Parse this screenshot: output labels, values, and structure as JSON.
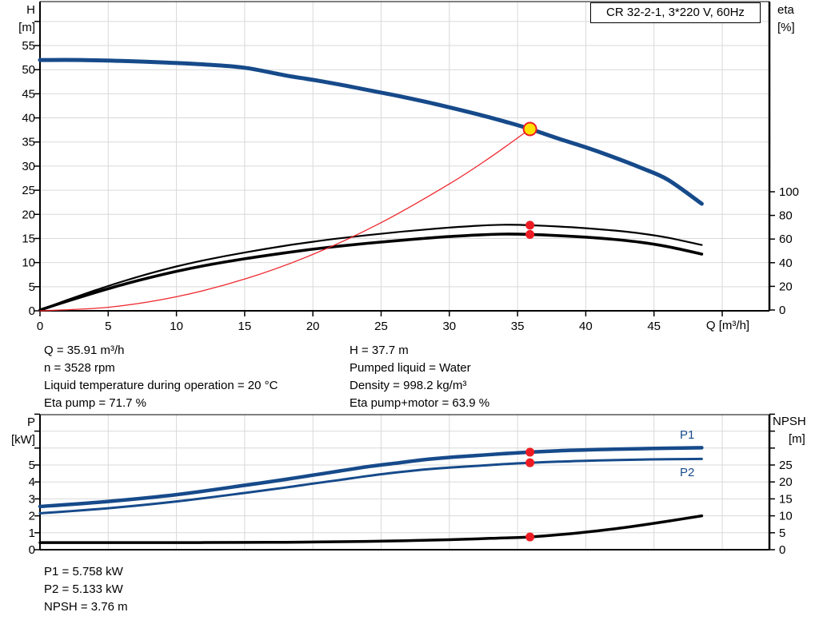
{
  "title_box": "CR 32-2-1, 3*220 V, 60Hz",
  "axes_labels": {
    "top_left_1": "H",
    "top_left_2": "[m]",
    "top_right_1": "eta",
    "top_right_2": "[%]",
    "x": "Q [m³/h]",
    "bottom_left_1": "P",
    "bottom_left_2": "[kW]",
    "bottom_right_1": "NPSH",
    "bottom_right_2": "[m]"
  },
  "info_top_left": {
    "line1": "Q = 35.91 m³/h",
    "line2": "n = 3528 rpm",
    "line3": "Liquid temperature during operation = 20 °C",
    "line4": "Eta pump = 71.7 %"
  },
  "info_top_right": {
    "line1": "H = 37.7 m",
    "line2": "Pumped liquid = Water",
    "line3": "Density = 998.2 kg/m³",
    "line4": "Eta pump+motor = 63.9 %"
  },
  "info_bottom": {
    "line1": "P1 = 5.758 kW",
    "line2": "P2 = 5.133 kW",
    "line3": "NPSH = 3.76 m"
  },
  "operating_point": {
    "Q": 35.91,
    "H": 37.7,
    "eta_pump": 71.7,
    "eta_pump_motor": 63.9,
    "P1": 5.758,
    "P2": 5.133,
    "NPSH": 3.76
  },
  "colors": {
    "curve_blue": "#164A8A",
    "curve_black": "#000000",
    "curve_red": "#ED1C24",
    "marker_red": "#ED1C24",
    "marker_yellow_fill": "#FFE000",
    "grid": "#D9D9D9",
    "axis": "#000000"
  },
  "chart_data": [
    {
      "type": "line",
      "title": "CR 32-2-1, 3*220 V, 60Hz",
      "xlabel": "Q [m³/h]",
      "ylabel_left": "H [m]",
      "ylabel_right": "eta [%]",
      "xlim": [
        0,
        53.4
      ],
      "ylim_left": [
        0,
        64
      ],
      "x_tick_labels": [
        0,
        5,
        10,
        15,
        20,
        25,
        30,
        35,
        40,
        45
      ],
      "x_tick_max": 50,
      "y_left_tick_labels": [
        0,
        5,
        10,
        15,
        20,
        25,
        30,
        35,
        40,
        45,
        50,
        55
      ],
      "y_left_tick_max": 60,
      "y_right_tick_labels": [
        0,
        20,
        40,
        60,
        80,
        100
      ],
      "grid": true,
      "legend_position": "none",
      "series": [
        {
          "name": "H",
          "axis": "left",
          "color": "#164A8A",
          "thick_from": 18,
          "points": [
            [
              0,
              52
            ],
            [
              3,
              52
            ],
            [
              6,
              51.8
            ],
            [
              9,
              51.5
            ],
            [
              12,
              51.1
            ],
            [
              15,
              50.4
            ],
            [
              18,
              48.8
            ],
            [
              20,
              47.9
            ],
            [
              22,
              46.9
            ],
            [
              24,
              45.8
            ],
            [
              26,
              44.7
            ],
            [
              28,
              43.5
            ],
            [
              30,
              42.2
            ],
            [
              32,
              40.8
            ],
            [
              34,
              39.3
            ],
            [
              35.91,
              37.7
            ],
            [
              38,
              35.7
            ],
            [
              40,
              33.9
            ],
            [
              42,
              31.9
            ],
            [
              44,
              29.7
            ],
            [
              46,
              27.2
            ],
            [
              48.5,
              22.2
            ]
          ]
        },
        {
          "name": "eta pump",
          "axis": "right",
          "color": "#000000",
          "thick_from": 18,
          "points": [
            [
              0,
              0
            ],
            [
              2,
              8.5
            ],
            [
              4,
              16.5
            ],
            [
              6,
              24
            ],
            [
              8,
              30.8
            ],
            [
              10,
              36.8
            ],
            [
              12,
              42
            ],
            [
              15,
              48.6
            ],
            [
              18,
              54.4
            ],
            [
              20,
              57.7
            ],
            [
              22,
              60.7
            ],
            [
              24,
              63.3
            ],
            [
              26,
              65.7
            ],
            [
              28,
              67.8
            ],
            [
              30,
              69.7
            ],
            [
              32,
              71.2
            ],
            [
              34,
              72.1
            ],
            [
              35.91,
              71.7
            ],
            [
              38,
              70.6
            ],
            [
              40,
              69.2
            ],
            [
              42,
              67.3
            ],
            [
              44,
              64.8
            ],
            [
              46,
              61.2
            ],
            [
              48.5,
              55
            ]
          ]
        },
        {
          "name": "eta pump+motor",
          "axis": "right",
          "color": "#000000",
          "thick_from": 18,
          "points": [
            [
              0,
              0
            ],
            [
              2,
              7.5
            ],
            [
              4,
              14.6
            ],
            [
              6,
              21.3
            ],
            [
              8,
              27.3
            ],
            [
              10,
              32.7
            ],
            [
              12,
              37.4
            ],
            [
              15,
              43.3
            ],
            [
              18,
              48.4
            ],
            [
              20,
              51.4
            ],
            [
              22,
              54.1
            ],
            [
              24,
              56.4
            ],
            [
              26,
              58.5
            ],
            [
              28,
              60.4
            ],
            [
              30,
              62.1
            ],
            [
              32,
              63.4
            ],
            [
              34,
              64.2
            ],
            [
              35.91,
              63.9
            ],
            [
              38,
              62.9
            ],
            [
              40,
              61.6
            ],
            [
              42,
              59.8
            ],
            [
              44,
              57.3
            ],
            [
              46,
              53.6
            ],
            [
              48.5,
              47.3
            ]
          ]
        },
        {
          "name": "system resistance curve",
          "axis": "left",
          "color": "#ED1C24",
          "thick_from": null,
          "points": [
            [
              0,
              0
            ],
            [
              5,
              0.73
            ],
            [
              10,
              2.92
            ],
            [
              15,
              6.58
            ],
            [
              20,
              11.69
            ],
            [
              25,
              18.27
            ],
            [
              30,
              26.31
            ],
            [
              33,
              31.83
            ],
            [
              35.91,
              37.7
            ]
          ]
        }
      ]
    },
    {
      "type": "line",
      "title": "",
      "xlabel": "",
      "ylabel_left": "P [kW]",
      "ylabel_right": "NPSH [m]",
      "xlim": [
        0,
        53.4
      ],
      "ylim_left": [
        0,
        8
      ],
      "x_tick_labels": [],
      "x_tick_max": 50,
      "y_left_tick_labels": [
        0,
        1,
        2,
        3,
        4,
        5
      ],
      "y_left_tick_max": 8,
      "y_right_tick_labels": [
        0,
        5,
        10,
        15,
        20,
        25
      ],
      "y_right_tick_max": 40,
      "grid": true,
      "legend_position": "inline-right",
      "series": [
        {
          "name": "P1",
          "label": "P1",
          "axis": "left",
          "color": "#164A8A",
          "thick_from": 18,
          "points": [
            [
              0,
              2.55
            ],
            [
              5,
              2.85
            ],
            [
              10,
              3.25
            ],
            [
              15,
              3.8
            ],
            [
              18,
              4.15
            ],
            [
              20,
              4.4
            ],
            [
              22,
              4.65
            ],
            [
              24,
              4.9
            ],
            [
              26,
              5.1
            ],
            [
              28,
              5.3
            ],
            [
              30,
              5.45
            ],
            [
              32,
              5.56
            ],
            [
              34,
              5.67
            ],
            [
              35.91,
              5.758
            ],
            [
              38,
              5.84
            ],
            [
              40,
              5.89
            ],
            [
              42,
              5.93
            ],
            [
              44,
              5.96
            ],
            [
              46,
              5.99
            ],
            [
              48.5,
              6.02
            ]
          ]
        },
        {
          "name": "P2",
          "label": "P2",
          "axis": "left",
          "color": "#164A8A",
          "thick_from": 18,
          "points": [
            [
              0,
              2.15
            ],
            [
              5,
              2.45
            ],
            [
              10,
              2.85
            ],
            [
              15,
              3.35
            ],
            [
              18,
              3.67
            ],
            [
              20,
              3.9
            ],
            [
              22,
              4.12
            ],
            [
              24,
              4.35
            ],
            [
              26,
              4.55
            ],
            [
              28,
              4.72
            ],
            [
              30,
              4.85
            ],
            [
              32,
              4.95
            ],
            [
              34,
              5.05
            ],
            [
              35.91,
              5.133
            ],
            [
              38,
              5.2
            ],
            [
              40,
              5.25
            ],
            [
              42,
              5.29
            ],
            [
              44,
              5.32
            ],
            [
              46,
              5.34
            ],
            [
              48.5,
              5.36
            ]
          ]
        },
        {
          "name": "NPSH",
          "axis": "right",
          "color": "#000000",
          "thick_from": 18,
          "points": [
            [
              0,
              2.1
            ],
            [
              5,
              2.1
            ],
            [
              10,
              2.1
            ],
            [
              15,
              2.15
            ],
            [
              18,
              2.2
            ],
            [
              22,
              2.35
            ],
            [
              26,
              2.6
            ],
            [
              30,
              2.95
            ],
            [
              33,
              3.35
            ],
            [
              35.91,
              3.76
            ],
            [
              38,
              4.4
            ],
            [
              40,
              5.2
            ],
            [
              42,
              6.1
            ],
            [
              44,
              7.2
            ],
            [
              46,
              8.4
            ],
            [
              48.5,
              10.0
            ]
          ]
        }
      ]
    }
  ]
}
